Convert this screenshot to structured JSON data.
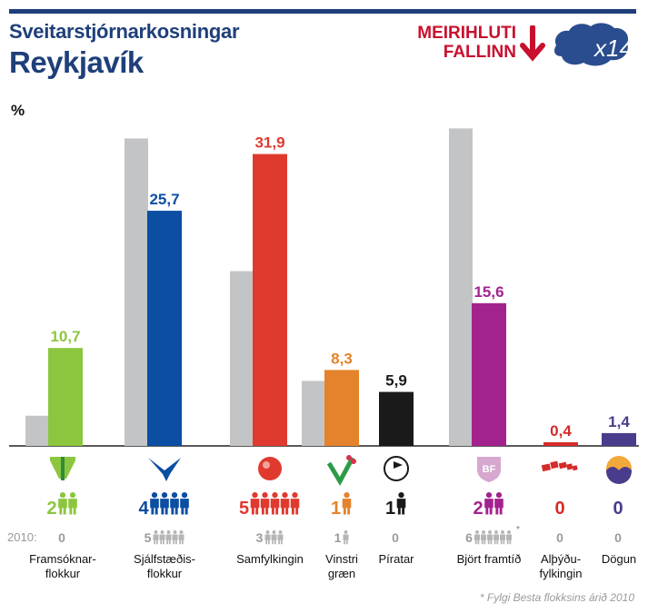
{
  "header": {
    "title_small": "Sveitarstjórnarkosningar",
    "title_big": "Reykjavík",
    "badge_line1": "MEIRIHLUTI",
    "badge_line2": "FALLINN",
    "badge_mark": "x14",
    "badge_color": "#c8102e",
    "title_color": "#1e3f7a"
  },
  "unit_label": "%",
  "seats_2010_label": "2010:",
  "footnote": "* Fylgi Besta flokksins árið 2010",
  "chart_data": {
    "type": "bar",
    "ylabel": "%",
    "ylim": [
      0,
      40
    ],
    "categories": [
      "Framsóknar-\nflokkur",
      "Sjálfstæðis-\nflokkur",
      "Samfylkingin",
      "Vinstri\ngræn",
      "Píratar",
      "Björt framtíð",
      "Alþýðu-\nfylkingin",
      "Dögun"
    ],
    "series": [
      {
        "values": [
          3.3,
          33.6,
          19.1,
          7.1,
          0,
          34.7,
          0,
          0
        ],
        "color": "#c3c4c6"
      },
      {
        "values": [
          10.7,
          25.7,
          31.9,
          8.3,
          5.9,
          15.6,
          0.4,
          1.4
        ]
      }
    ],
    "value_labels": [
      "10,7",
      "25,7",
      "31,9",
      "8,3",
      "5,9",
      "15,6",
      "0,4",
      "1,4"
    ],
    "colors": [
      "#8cc63f",
      "#0b4ea2",
      "#e03a2f",
      "#e4832b",
      "#1a1a1a",
      "#a3238e",
      "#d62b2b",
      "#4a3c8c"
    ],
    "seats_2014": [
      "2",
      "4",
      "5",
      "1",
      "1",
      "2",
      "0",
      "0"
    ],
    "seats_2010": [
      "0",
      "5",
      "3",
      "1",
      "0",
      "6",
      "0",
      "0"
    ],
    "seats_2010_note": [
      "",
      "",
      "",
      "",
      "",
      "*",
      "",
      ""
    ],
    "logo_icons": [
      "framsokn-logo-icon",
      "falcon-logo-icon",
      "rose-ball-logo-icon",
      "vg-leaf-logo-icon",
      "pirate-flag-logo-icon",
      "bf-shield-logo-icon",
      "red-flags-logo-icon",
      "sunrise-logo-icon"
    ],
    "logo_text": [
      "",
      "",
      "",
      "",
      "",
      "BF",
      "",
      ""
    ]
  }
}
